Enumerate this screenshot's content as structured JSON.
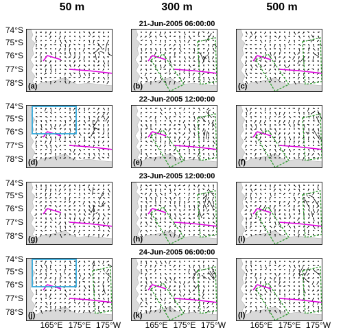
{
  "column_titles": [
    "50 m",
    "300 m",
    "500 m"
  ],
  "dates": [
    "21-Jun-2005 06:00:00",
    "22-Jun-2005 12:00:00",
    "23-Jun-2005 12:00:00",
    "24-Jun-2005 06:00:00"
  ],
  "lat_labels": [
    "74°S",
    "75°S",
    "76°S",
    "77°S",
    "78°S"
  ],
  "lon_labels": [
    "165°E",
    "175°E",
    "175°W"
  ],
  "panel_labels": [
    "(a)",
    "(b)",
    "(c)",
    "(d)",
    "(e)",
    "(f)",
    "(g)",
    "(h)",
    "(i)",
    "(j)",
    "(k)",
    "(l)"
  ],
  "colors": {
    "land": "#d9d9d9",
    "magenta": "#e000e0",
    "green": "#2a9a2a",
    "cyan": "#33aadd",
    "vector": "#000000"
  }
}
